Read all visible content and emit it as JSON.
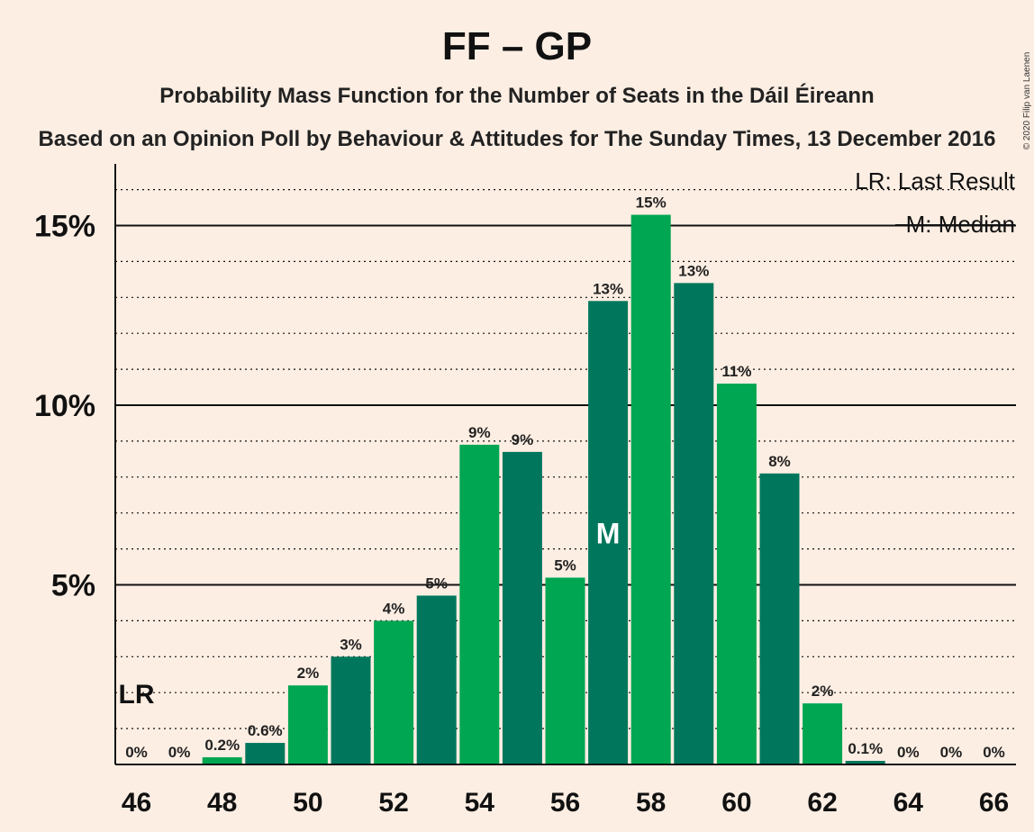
{
  "title": "FF – GP",
  "subtitle": "Probability Mass Function for the Number of Seats in the Dáil Éireann",
  "subtitle2": "Based on an Opinion Poll by Behaviour & Attitudes for The Sunday Times, 13 December 2016",
  "copyright": "© 2020 Filip van Laenen",
  "legend": {
    "lr": "LR: Last Result",
    "median": "M: Median"
  },
  "markers": {
    "last_result_label": "LR",
    "median_label": "M"
  },
  "colors": {
    "background": "#fdeee3",
    "light_green": "#00a651",
    "dark_green": "#00775c"
  },
  "chart_data": {
    "type": "bar",
    "categories": [
      46,
      47,
      48,
      49,
      50,
      51,
      52,
      53,
      54,
      55,
      56,
      57,
      58,
      59,
      60,
      61,
      62,
      63,
      64,
      65,
      66
    ],
    "values": [
      0,
      0,
      0.2,
      0.6,
      2.2,
      3.0,
      4.0,
      4.7,
      8.9,
      8.7,
      5.2,
      12.9,
      15.3,
      13.4,
      10.6,
      8.1,
      1.7,
      0.1,
      0,
      0,
      0
    ],
    "value_labels": [
      "0%",
      "0%",
      "0.2%",
      "0.6%",
      "2%",
      "3%",
      "4%",
      "5%",
      "9%",
      "9%",
      "5%",
      "13%",
      "15%",
      "13%",
      "11%",
      "8%",
      "2%",
      "0.1%",
      "0%",
      "0%",
      "0%"
    ],
    "x_tick_labels": [
      "46",
      "48",
      "50",
      "52",
      "54",
      "56",
      "58",
      "60",
      "62",
      "64",
      "66"
    ],
    "y_ticks": [
      5,
      10,
      15
    ],
    "y_tick_labels": [
      "5%",
      "10%",
      "15%"
    ],
    "ylim": [
      0,
      16.7
    ],
    "last_result": 46,
    "median": 57,
    "grid": true
  }
}
